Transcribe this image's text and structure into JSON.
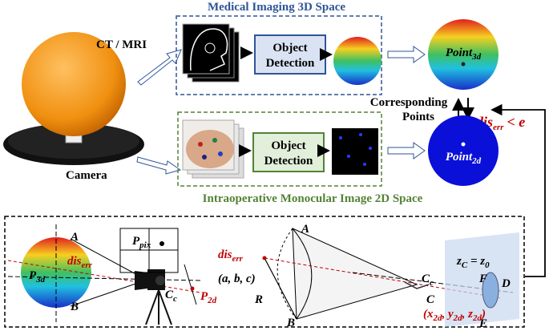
{
  "top": {
    "medical_title": "Medical Imaging 3D Space",
    "ct_mri": "CT / MRI",
    "detection_3d": [
      "Object",
      "Detection"
    ],
    "point_3d": {
      "base": "Point",
      "sub": "3d"
    },
    "corresponding": [
      "Corresponding",
      "Points"
    ],
    "dis_err": {
      "base": "dis",
      "sub": "err",
      "rest": "< e"
    },
    "camera": "Camera",
    "detection_2d": [
      "Object",
      "Detection"
    ],
    "point_2d": {
      "base": "Point",
      "sub": "2d"
    },
    "intraop_title": "Intraoperative Monocular Image 2D Space"
  },
  "bottom": {
    "left": {
      "a": "A",
      "b": "B",
      "p_pix": {
        "base": "P",
        "sub": "pix"
      },
      "dis_err": {
        "base": "dis",
        "sub": "err"
      },
      "p_3d": {
        "base": "P",
        "sub": "3d"
      },
      "c_c": {
        "base": "C",
        "sub": "c"
      },
      "p_2d": {
        "base": "P",
        "sub": "2d"
      }
    },
    "right": {
      "dis_err": {
        "base": "dis",
        "sub": "err"
      },
      "abc": "(a, b, c)",
      "r": "R",
      "a": "A",
      "b": "B",
      "c_c": {
        "base": "C",
        "sub": "c"
      },
      "c": "C",
      "plane": {
        "z1": "z",
        "s1": "C",
        "eq": " = z",
        "s2": "0"
      },
      "f": "F",
      "d": "D",
      "e": "E",
      "xyz": {
        "p1": "(x",
        "s1": "2d",
        "p2": ", y",
        "s2": "2d",
        "p3": ", z",
        "s3": "2d",
        "p4": ")"
      }
    }
  }
}
